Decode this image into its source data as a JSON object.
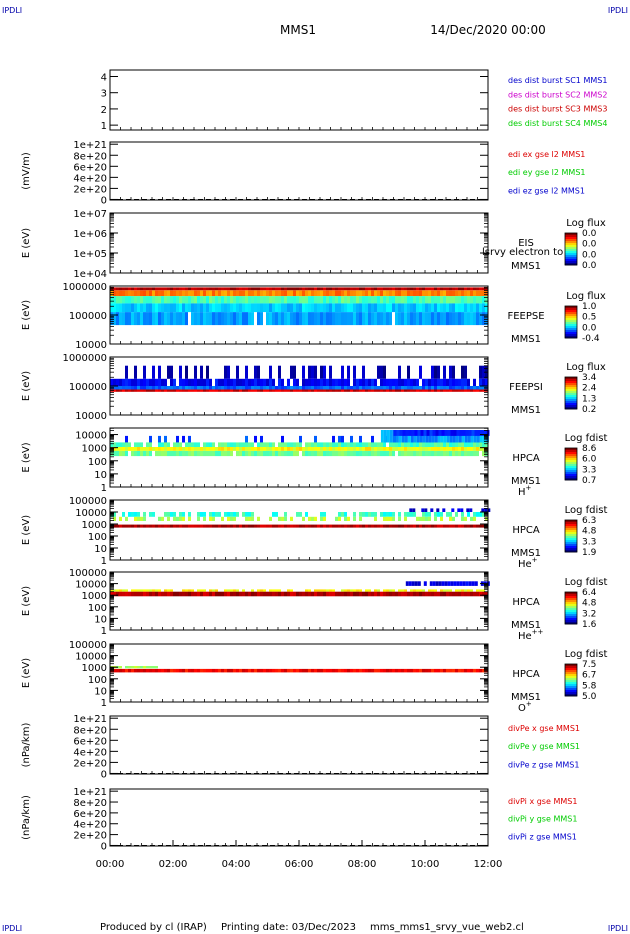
{
  "header": {
    "corner_labels": [
      "IPDLI",
      "IPDLI",
      "IPDLI",
      "IPDLI"
    ],
    "spacecraft": "MMS1",
    "date": "14/Dec/2020 00:00"
  },
  "footer": {
    "produced_by": "Produced by cl (IRAP)",
    "printing_date": "Printing date: 03/Dec/2023",
    "script": "mms_mms1_srvy_vue_web2.cl"
  },
  "colors": {
    "mms1": "#0000cc",
    "mms2": "#cc00cc",
    "mms3": "#cc0000",
    "mms4": "#00cc00",
    "ex": "#dd0000",
    "ey": "#00cc00",
    "ez": "#0000cc"
  },
  "time_axis": {
    "ticks": [
      "00:00",
      "02:00",
      "04:00",
      "06:00",
      "08:00",
      "10:00",
      "12:00"
    ],
    "range_hours": [
      0,
      12
    ]
  },
  "chart_data": [
    {
      "type": "line",
      "id": "dist",
      "yticks": [
        "1",
        "2",
        "3",
        "4"
      ],
      "ylim": [
        0.7,
        4.4
      ],
      "legend": [
        {
          "text": "des dist burst SC1 MMS1",
          "color": "mms1"
        },
        {
          "text": "des dist burst SC2 MMS2",
          "color": "mms2"
        },
        {
          "text": "des dist burst SC3 MMS3",
          "color": "mms3"
        },
        {
          "text": "des dist burst SC4 MMS4",
          "color": "mms4"
        }
      ]
    },
    {
      "type": "line",
      "id": "edi",
      "ylabel": "(mV/m)",
      "yticks": [
        "0",
        "2e+20",
        "4e+20",
        "6e+20",
        "8e+20",
        "1e+21"
      ],
      "yvalues": [
        0,
        2e+20,
        4e+20,
        6e+20,
        8e+20,
        1e+21
      ],
      "ylim": [
        -1e+19,
        1.04e+21
      ],
      "zero_line": true,
      "legend": [
        {
          "text": "edi ex gse l2 MMS1",
          "color": "ex"
        },
        {
          "text": "edi ey gse l2 MMS1",
          "color": "ey"
        },
        {
          "text": "edi ez gse l2 MMS1",
          "color": "ez"
        }
      ]
    },
    {
      "type": "heatmap",
      "id": "eis",
      "ylabel": "E (eV)",
      "log": true,
      "yticks": [
        "1e+04",
        "1e+05",
        "1e+06",
        "1e+07"
      ],
      "ylim_log": [
        4,
        7
      ],
      "instrument": "EIS",
      "spacecraft": "MMS1",
      "overlay": "lsrvy electron to",
      "colorbar": {
        "title": "Log flux",
        "ticks": [
          "0.0",
          "0.0",
          "0.0",
          "0.0"
        ]
      },
      "bands": []
    },
    {
      "type": "heatmap",
      "id": "feepse",
      "ylabel": "E (eV)",
      "log": true,
      "yticks": [
        "10000",
        "100000",
        "1000000"
      ],
      "ylim_log": [
        4,
        6
      ],
      "instrument": "FEEPSE",
      "spacecraft": "MMS1",
      "colorbar": {
        "title": "Log flux",
        "ticks": [
          "1.0",
          "0.5",
          "0.0",
          "-0.4"
        ]
      },
      "bands": [
        {
          "t": [
            0,
            12
          ],
          "ylog": [
            5.85,
            5.95
          ],
          "level": 0.95,
          "density": 1.0
        },
        {
          "t": [
            0,
            12
          ],
          "ylog": [
            5.65,
            5.85
          ],
          "level": 0.75,
          "density": 1.0
        },
        {
          "t": [
            0,
            12
          ],
          "ylog": [
            5.4,
            5.65
          ],
          "level": 0.45,
          "density": 1.0
        },
        {
          "t": [
            0,
            12
          ],
          "ylog": [
            5.1,
            5.4
          ],
          "level": 0.33,
          "density": 1.0
        },
        {
          "t": [
            0,
            12
          ],
          "ylog": [
            4.65,
            5.1
          ],
          "level": 0.28,
          "density": 0.95
        }
      ]
    },
    {
      "type": "heatmap",
      "id": "feepsi",
      "ylabel": "E (eV)",
      "log": true,
      "yticks": [
        "10000",
        "100000",
        "1000000"
      ],
      "ylim_log": [
        4,
        6
      ],
      "instrument": "FEEPSI",
      "spacecraft": "MMS1",
      "colorbar": {
        "title": "Log flux",
        "ticks": [
          "3.4",
          "2.4",
          "1.3",
          "0.2"
        ]
      },
      "bands": [
        {
          "t": [
            0,
            12
          ],
          "ylog": [
            5.25,
            5.7
          ],
          "level": 0.05,
          "density": 0.35
        },
        {
          "t": [
            0,
            12
          ],
          "ylog": [
            5.0,
            5.25
          ],
          "level": 0.12,
          "density": 0.9
        },
        {
          "t": [
            0,
            12
          ],
          "ylog": [
            4.88,
            5.0
          ],
          "level": 0.22,
          "density": 1.0
        },
        {
          "t": [
            0,
            12
          ],
          "ylog": [
            4.8,
            4.88
          ],
          "level": 0.92,
          "density": 1.0
        }
      ]
    },
    {
      "type": "heatmap",
      "id": "hpca_h",
      "ylabel": "E (eV)",
      "log": true,
      "yticks": [
        "1",
        "10",
        "100",
        "1000",
        "10000"
      ],
      "ylim_log": [
        0,
        4.5
      ],
      "instrument": "HPCA",
      "spacecraft": "MMS1",
      "species": "H",
      "species_sup": "+",
      "colorbar": {
        "title": "Log fdist",
        "ticks": [
          "8.6",
          "6.0",
          "3.3",
          "0.7"
        ]
      },
      "bands": [
        {
          "t": [
            0,
            9.2
          ],
          "ylog": [
            3.4,
            3.9
          ],
          "level": 0.18,
          "density": 0.25
        },
        {
          "t": [
            0,
            12
          ],
          "ylog": [
            3.05,
            3.4
          ],
          "level": 0.45,
          "density": 0.9
        },
        {
          "t": [
            0,
            12
          ],
          "ylog": [
            2.75,
            3.05
          ],
          "level": 0.62,
          "density": 1.0
        },
        {
          "t": [
            0,
            12
          ],
          "ylog": [
            2.35,
            2.75
          ],
          "level": 0.48,
          "density": 0.95
        },
        {
          "t": [
            8.6,
            12
          ],
          "ylog": [
            3.4,
            4.35
          ],
          "level": 0.28,
          "density": 1.0
        },
        {
          "t": [
            9.0,
            12
          ],
          "ylog": [
            3.9,
            4.35
          ],
          "level": 0.15,
          "density": 1.0
        }
      ]
    },
    {
      "type": "heatmap",
      "id": "hpca_he",
      "ylabel": "E (eV)",
      "log": true,
      "yticks": [
        "1",
        "10",
        "100",
        "1000",
        "10000",
        "100000"
      ],
      "ylim_log": [
        0,
        5
      ],
      "instrument": "HPCA",
      "spacecraft": "MMS1",
      "species": "He",
      "species_sup": "+",
      "colorbar": {
        "title": "Log fdist",
        "ticks": [
          "6.3",
          "4.8",
          "3.3",
          "1.9"
        ]
      },
      "bands": [
        {
          "t": [
            0,
            12
          ],
          "ylog": [
            3.6,
            4.0
          ],
          "level": 0.42,
          "density": 0.6
        },
        {
          "t": [
            0,
            12
          ],
          "ylog": [
            3.25,
            3.6
          ],
          "level": 0.55,
          "density": 0.55
        },
        {
          "t": [
            0,
            12
          ],
          "ylog": [
            2.7,
            2.95
          ],
          "level": 0.95,
          "density": 1.0
        },
        {
          "t": [
            9.5,
            12
          ],
          "ylog": [
            4.0,
            4.3
          ],
          "level": 0.08,
          "density": 0.6
        }
      ]
    },
    {
      "type": "heatmap",
      "id": "hpca_hepp",
      "ylabel": "E (eV)",
      "log": true,
      "yticks": [
        "1",
        "10",
        "100",
        "1000",
        "10000",
        "100000"
      ],
      "ylim_log": [
        0,
        5
      ],
      "instrument": "HPCA",
      "spacecraft": "MMS1",
      "species": "He",
      "species_sup": "++",
      "colorbar": {
        "title": "Log fdist",
        "ticks": [
          "6.4",
          "4.8",
          "3.2",
          "1.6"
        ]
      },
      "bands": [
        {
          "t": [
            0,
            12
          ],
          "ylog": [
            3.3,
            3.5
          ],
          "level": 0.62,
          "density": 0.7
        },
        {
          "t": [
            0,
            12
          ],
          "ylog": [
            2.9,
            3.3
          ],
          "level": 0.95,
          "density": 1.0
        },
        {
          "t": [
            9.2,
            12
          ],
          "ylog": [
            3.8,
            4.2
          ],
          "level": 0.1,
          "density": 0.9
        }
      ]
    },
    {
      "type": "heatmap",
      "id": "hpca_o",
      "ylabel": "E (eV)",
      "log": true,
      "yticks": [
        "1",
        "10",
        "100",
        "1000",
        "10000",
        "100000"
      ],
      "ylim_log": [
        0,
        5
      ],
      "instrument": "HPCA",
      "spacecraft": "MMS1",
      "species": "O",
      "species_sup": "+",
      "colorbar": {
        "title": "Log fdist",
        "ticks": [
          "7.5",
          "6.7",
          "5.8",
          "5.0"
        ]
      },
      "bands": [
        {
          "t": [
            0,
            1.5
          ],
          "ylog": [
            2.9,
            3.1
          ],
          "level": 0.55,
          "density": 0.9
        },
        {
          "t": [
            0,
            12
          ],
          "ylog": [
            2.55,
            2.85
          ],
          "level": 0.88,
          "density": 1.0
        }
      ]
    },
    {
      "type": "line",
      "id": "divpe",
      "ylabel": "(nPa/km)",
      "yticks": [
        "0",
        "2e+20",
        "4e+20",
        "6e+20",
        "8e+20",
        "1e+21"
      ],
      "yvalues": [
        0,
        2e+20,
        4e+20,
        6e+20,
        8e+20,
        1e+21
      ],
      "ylim": [
        -1e+19,
        1.04e+21
      ],
      "zero_line": true,
      "legend": [
        {
          "text": "divPe x gse MMS1",
          "color": "ex"
        },
        {
          "text": "divPe y gse MMS1",
          "color": "ey"
        },
        {
          "text": "divPe z gse MMS1",
          "color": "ez"
        }
      ]
    },
    {
      "type": "line",
      "id": "divpi",
      "ylabel": "(nPa/km)",
      "yticks": [
        "0",
        "2e+20",
        "4e+20",
        "6e+20",
        "8e+20",
        "1e+21"
      ],
      "yvalues": [
        0,
        2e+20,
        4e+20,
        6e+20,
        8e+20,
        1e+21
      ],
      "ylim": [
        -1e+19,
        1.04e+21
      ],
      "zero_line": true,
      "legend": [
        {
          "text": "divPi x gse MMS1",
          "color": "ex"
        },
        {
          "text": "divPi y gse MMS1",
          "color": "ey"
        },
        {
          "text": "divPi z gse MMS1",
          "color": "ez"
        }
      ]
    }
  ]
}
